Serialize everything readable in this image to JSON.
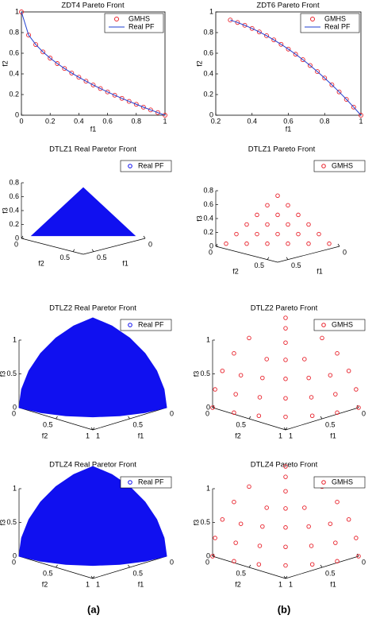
{
  "panel_labels": [
    "(a)",
    "(b)"
  ],
  "chart_data": [
    {
      "type": "line",
      "title": "ZDT4 Pareto Front",
      "xlabel": "f1",
      "ylabel": "f2",
      "legend": "upper right",
      "xlim": [
        0,
        1
      ],
      "xticks": [
        0,
        0.2,
        0.4,
        0.6,
        0.8,
        1
      ],
      "ylim": [
        0,
        1
      ],
      "yticks": [
        0,
        0.2,
        0.4,
        0.6,
        0.8,
        1
      ],
      "x": [
        0,
        0.05,
        0.1,
        0.15,
        0.2,
        0.25,
        0.3,
        0.35,
        0.4,
        0.45,
        0.5,
        0.55,
        0.6,
        0.65,
        0.7,
        0.75,
        0.8,
        0.85,
        0.9,
        0.95,
        1
      ],
      "series": [
        {
          "name": "GMHS",
          "color": "#e8202a",
          "mode": "markers",
          "values": [
            1,
            0.7764,
            0.6838,
            0.6127,
            0.5528,
            0.5,
            0.4523,
            0.4084,
            0.3675,
            0.3292,
            0.2929,
            0.2584,
            0.2254,
            0.1938,
            0.1633,
            0.134,
            0.1056,
            0.078,
            0.0513,
            0.0253,
            0
          ]
        },
        {
          "name": "Real PF",
          "color": "#1f3fd0",
          "mode": "line",
          "values": [
            1,
            0.7764,
            0.6838,
            0.6127,
            0.5528,
            0.5,
            0.4523,
            0.4084,
            0.3675,
            0.3292,
            0.2929,
            0.2584,
            0.2254,
            0.1938,
            0.1633,
            0.134,
            0.1056,
            0.078,
            0.0513,
            0.0253,
            0
          ]
        }
      ]
    },
    {
      "type": "line",
      "title": "ZDT6 Pareto Front",
      "xlabel": "f1",
      "ylabel": "f2",
      "legend": "upper right",
      "xlim": [
        0.2,
        1
      ],
      "xticks": [
        0.2,
        0.4,
        0.6,
        0.8,
        1
      ],
      "ylim": [
        0,
        1
      ],
      "yticks": [
        0,
        0.2,
        0.4,
        0.6,
        0.8,
        1
      ],
      "x": [
        0.28,
        0.32,
        0.36,
        0.4,
        0.44,
        0.48,
        0.52,
        0.56,
        0.6,
        0.64,
        0.68,
        0.72,
        0.76,
        0.8,
        0.84,
        0.88,
        0.92,
        0.96,
        1
      ],
      "series": [
        {
          "name": "GMHS",
          "color": "#e8202a",
          "mode": "markers",
          "values": [
            0.9216,
            0.8976,
            0.8704,
            0.84,
            0.8064,
            0.7696,
            0.7296,
            0.6864,
            0.64,
            0.5904,
            0.5376,
            0.4816,
            0.4224,
            0.36,
            0.2944,
            0.2256,
            0.1536,
            0.0784,
            0
          ]
        },
        {
          "name": "Real PF",
          "color": "#1f3fd0",
          "mode": "line",
          "values": [
            0.9216,
            0.8976,
            0.8704,
            0.84,
            0.8064,
            0.7696,
            0.7296,
            0.6864,
            0.64,
            0.5904,
            0.5376,
            0.4816,
            0.4224,
            0.36,
            0.2944,
            0.2256,
            0.1536,
            0.0784,
            0
          ]
        }
      ]
    },
    {
      "type": "scatter3d",
      "title": "DTLZ1 Real Paretor Front",
      "xlabel": "f1",
      "ylabel": "f2",
      "zlabel": "f3",
      "legend": "upper right",
      "xlim": [
        0,
        0.6
      ],
      "xticks": [
        0,
        0.5
      ],
      "ylim": [
        0,
        0.6
      ],
      "yticks": [
        0,
        0.5
      ],
      "zlim": [
        0,
        0.8
      ],
      "zticks": [
        0,
        0.2,
        0.4,
        0.6,
        0.8
      ],
      "series": [
        {
          "name": "Real PF",
          "color": "#1010f0",
          "mode": "surface",
          "x": [
            0.5,
            0,
            0
          ],
          "y": [
            0,
            0.5,
            0
          ],
          "z": [
            0,
            0,
            0.5
          ]
        }
      ]
    },
    {
      "type": "scatter3d",
      "title": "DTLZ1 Pareto Front",
      "xlabel": "f1",
      "ylabel": "f2",
      "zlabel": "f3",
      "legend": "upper right",
      "xlim": [
        0,
        0.6
      ],
      "xticks": [
        0,
        0.5
      ],
      "ylim": [
        0,
        0.6
      ],
      "yticks": [
        0,
        0.5
      ],
      "zlim": [
        0,
        0.8
      ],
      "zticks": [
        0,
        0.2,
        0.4,
        0.6,
        0.8
      ],
      "series": [
        {
          "name": "GMHS",
          "color": "#e8202a",
          "mode": "markers",
          "x": [
            0,
            0,
            0,
            0,
            0,
            0,
            0.1,
            0.1,
            0.1,
            0.1,
            0.1,
            0.2,
            0.2,
            0.2,
            0.2,
            0.3,
            0.3,
            0.3,
            0.4,
            0.4,
            0.5
          ],
          "y": [
            0,
            0.1,
            0.2,
            0.3,
            0.4,
            0.5,
            0,
            0.1,
            0.2,
            0.3,
            0.4,
            0,
            0.1,
            0.2,
            0.3,
            0,
            0.1,
            0.2,
            0,
            0.1,
            0
          ],
          "z": [
            0.5,
            0.4,
            0.3,
            0.2,
            0.1,
            0,
            0.4,
            0.3,
            0.2,
            0.1,
            0,
            0.3,
            0.2,
            0.1,
            0,
            0.2,
            0.1,
            0,
            0.1,
            0,
            0
          ]
        }
      ]
    },
    {
      "type": "scatter3d",
      "title": "DTLZ2 Real Paretor Front",
      "xlabel": "f1",
      "ylabel": "f2",
      "zlabel": "f3",
      "legend": "upper right",
      "xlim": [
        0,
        1
      ],
      "xticks": [
        0,
        0.5,
        1
      ],
      "ylim": [
        0,
        1
      ],
      "yticks": [
        0,
        0.5,
        1
      ],
      "zlim": [
        0,
        1
      ],
      "zticks": [
        0,
        0.5,
        1
      ],
      "series": [
        {
          "name": "Real PF",
          "color": "#1010f0",
          "mode": "surface",
          "x": [
            1,
            0.9659,
            0.866,
            0.7071,
            0.5,
            0.2588,
            0,
            0,
            0,
            0,
            0,
            0,
            0,
            0.2588,
            0.5,
            0.7071,
            0.866,
            0.9659
          ],
          "y": [
            0,
            0.2588,
            0.5,
            0.7071,
            0.866,
            0.9659,
            1,
            0.9659,
            0.866,
            0.7071,
            0.5,
            0.2588,
            0,
            0,
            0,
            0,
            0,
            0
          ],
          "z": [
            0,
            0,
            0,
            0,
            0,
            0,
            0,
            0.2588,
            0.5,
            0.7071,
            0.866,
            0.9659,
            1,
            0.9659,
            0.866,
            0.7071,
            0.5,
            0.2588
          ]
        }
      ]
    },
    {
      "type": "scatter3d",
      "title": "DTLZ2 Pareto Front",
      "xlabel": "f1",
      "ylabel": "f2",
      "zlabel": "f3",
      "legend": "upper right",
      "xlim": [
        0,
        1
      ],
      "xticks": [
        0,
        0.5,
        1
      ],
      "ylim": [
        0,
        1
      ],
      "yticks": [
        0,
        0.5,
        1
      ],
      "zlim": [
        0,
        1
      ],
      "zticks": [
        0,
        0.5,
        1
      ],
      "series": [
        {
          "name": "GMHS",
          "color": "#e8202a",
          "mode": "markers",
          "x": [
            1,
            0.9659,
            0.866,
            0.7071,
            0.5,
            0.2588,
            0,
            0.9659,
            0.933,
            0.8365,
            0.683,
            0.483,
            0.25,
            0,
            0.866,
            0.8365,
            0.75,
            0.6124,
            0.433,
            0.2241,
            0,
            0.7071,
            0.6124,
            0.5,
            0.3536,
            0,
            0.5,
            0.3536,
            0,
            0.183,
            0
          ],
          "y": [
            0,
            0.2588,
            0.5,
            0.7071,
            0.866,
            0.9659,
            1,
            0,
            0.25,
            0.483,
            0.683,
            0.8365,
            0.933,
            0.9659,
            0,
            0.2241,
            0.433,
            0.6124,
            0.75,
            0.8365,
            0.866,
            0,
            0.3536,
            0.5,
            0.6124,
            0.7071,
            0,
            0.3536,
            0.5,
            0.183,
            0
          ],
          "z": [
            0,
            0,
            0,
            0,
            0,
            0,
            0,
            0.2588,
            0.2588,
            0.2588,
            0.2588,
            0.2588,
            0.2588,
            0.2588,
            0.5,
            0.5,
            0.5,
            0.5,
            0.5,
            0.5,
            0.5,
            0.7071,
            0.7071,
            0.7071,
            0.7071,
            0.7071,
            0.866,
            0.866,
            0.866,
            0.9659,
            1
          ]
        }
      ]
    },
    {
      "type": "scatter3d",
      "title": "DTLZ4 Real Paretor Front",
      "xlabel": "f1",
      "ylabel": "f2",
      "zlabel": "f3",
      "legend": "upper right",
      "xlim": [
        0,
        1
      ],
      "xticks": [
        0,
        0.5,
        1
      ],
      "ylim": [
        0,
        1
      ],
      "yticks": [
        0,
        0.5,
        1
      ],
      "zlim": [
        0,
        1
      ],
      "zticks": [
        0,
        0.5,
        1
      ],
      "series": [
        {
          "name": "Real PF",
          "color": "#1010f0",
          "mode": "surface",
          "x": [
            1,
            0.9659,
            0.866,
            0.7071,
            0.5,
            0.2588,
            0,
            0,
            0,
            0,
            0,
            0,
            0,
            0.2588,
            0.5,
            0.7071,
            0.866,
            0.9659
          ],
          "y": [
            0,
            0.2588,
            0.5,
            0.7071,
            0.866,
            0.9659,
            1,
            0.9659,
            0.866,
            0.7071,
            0.5,
            0.2588,
            0,
            0,
            0,
            0,
            0,
            0
          ],
          "z": [
            0,
            0,
            0,
            0,
            0,
            0,
            0,
            0.2588,
            0.5,
            0.7071,
            0.866,
            0.9659,
            1,
            0.9659,
            0.866,
            0.7071,
            0.5,
            0.2588
          ]
        }
      ]
    },
    {
      "type": "scatter3d",
      "title": "DTLZ4 Pareto Front",
      "xlabel": "f1",
      "ylabel": "f2",
      "zlabel": "f3",
      "legend": "upper right",
      "xlim": [
        0,
        1
      ],
      "xticks": [
        0,
        0.5,
        1
      ],
      "ylim": [
        0,
        1
      ],
      "yticks": [
        0,
        0.5,
        1
      ],
      "zlim": [
        0,
        1
      ],
      "zticks": [
        0,
        0.5,
        1
      ],
      "series": [
        {
          "name": "GMHS",
          "color": "#e8202a",
          "mode": "markers",
          "x": [
            1,
            0.9659,
            0.866,
            0.7071,
            0.5,
            0.2588,
            0,
            0.9659,
            0.933,
            0.8365,
            0.683,
            0.483,
            0.25,
            0,
            0.866,
            0.8365,
            0.75,
            0.6124,
            0.433,
            0.2241,
            0,
            0.7071,
            0.6124,
            0.5,
            0.3536,
            0,
            0.5,
            0.3536,
            0,
            0.183,
            0
          ],
          "y": [
            0,
            0.2588,
            0.5,
            0.7071,
            0.866,
            0.9659,
            1,
            0,
            0.25,
            0.483,
            0.683,
            0.8365,
            0.933,
            0.9659,
            0,
            0.2241,
            0.433,
            0.6124,
            0.75,
            0.8365,
            0.866,
            0,
            0.3536,
            0.5,
            0.6124,
            0.7071,
            0,
            0.3536,
            0.5,
            0.183,
            0
          ],
          "z": [
            0,
            0,
            0,
            0,
            0,
            0,
            0,
            0.2588,
            0.2588,
            0.2588,
            0.2588,
            0.2588,
            0.2588,
            0.2588,
            0.5,
            0.5,
            0.5,
            0.5,
            0.5,
            0.5,
            0.5,
            0.7071,
            0.7071,
            0.7071,
            0.7071,
            0.7071,
            0.866,
            0.866,
            0.866,
            0.9659,
            1
          ]
        }
      ]
    }
  ]
}
